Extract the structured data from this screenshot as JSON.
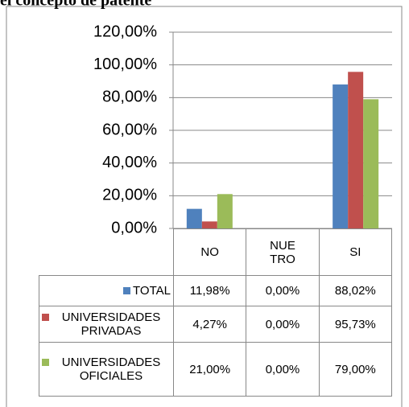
{
  "chart_data": {
    "type": "bar",
    "title": "el concepto de patente",
    "categories": [
      "NO",
      "NUE TRO",
      "SI"
    ],
    "series": [
      {
        "name": "TOTAL",
        "color": "#4f81bd",
        "values": [
          11.98,
          0,
          88.02
        ],
        "value_labels": [
          "11,98%",
          "0,00%",
          "88,02%"
        ]
      },
      {
        "name": "UNIVERSIDADES PRIVADAS",
        "color": "#c0504d",
        "values": [
          4.27,
          0,
          95.73
        ],
        "value_labels": [
          "4,27%",
          "0,00%",
          "95,73%"
        ]
      },
      {
        "name": "UNIVERSIDADES OFICIALES",
        "color": "#9bbb59",
        "values": [
          21,
          0,
          79
        ],
        "value_labels": [
          "21,00%",
          "0,00%",
          "79,00%"
        ]
      }
    ],
    "ylim": [
      0,
      120
    ],
    "yticks": [
      {
        "value": 0,
        "label": "0,00%"
      },
      {
        "value": 20,
        "label": "20,00%"
      },
      {
        "value": 40,
        "label": "40,00%"
      },
      {
        "value": 60,
        "label": "60,00%"
      },
      {
        "value": 80,
        "label": "80,00%"
      },
      {
        "value": 100,
        "label": "100,00%"
      },
      {
        "value": 120,
        "label": "120,00%"
      }
    ],
    "grid": true
  }
}
